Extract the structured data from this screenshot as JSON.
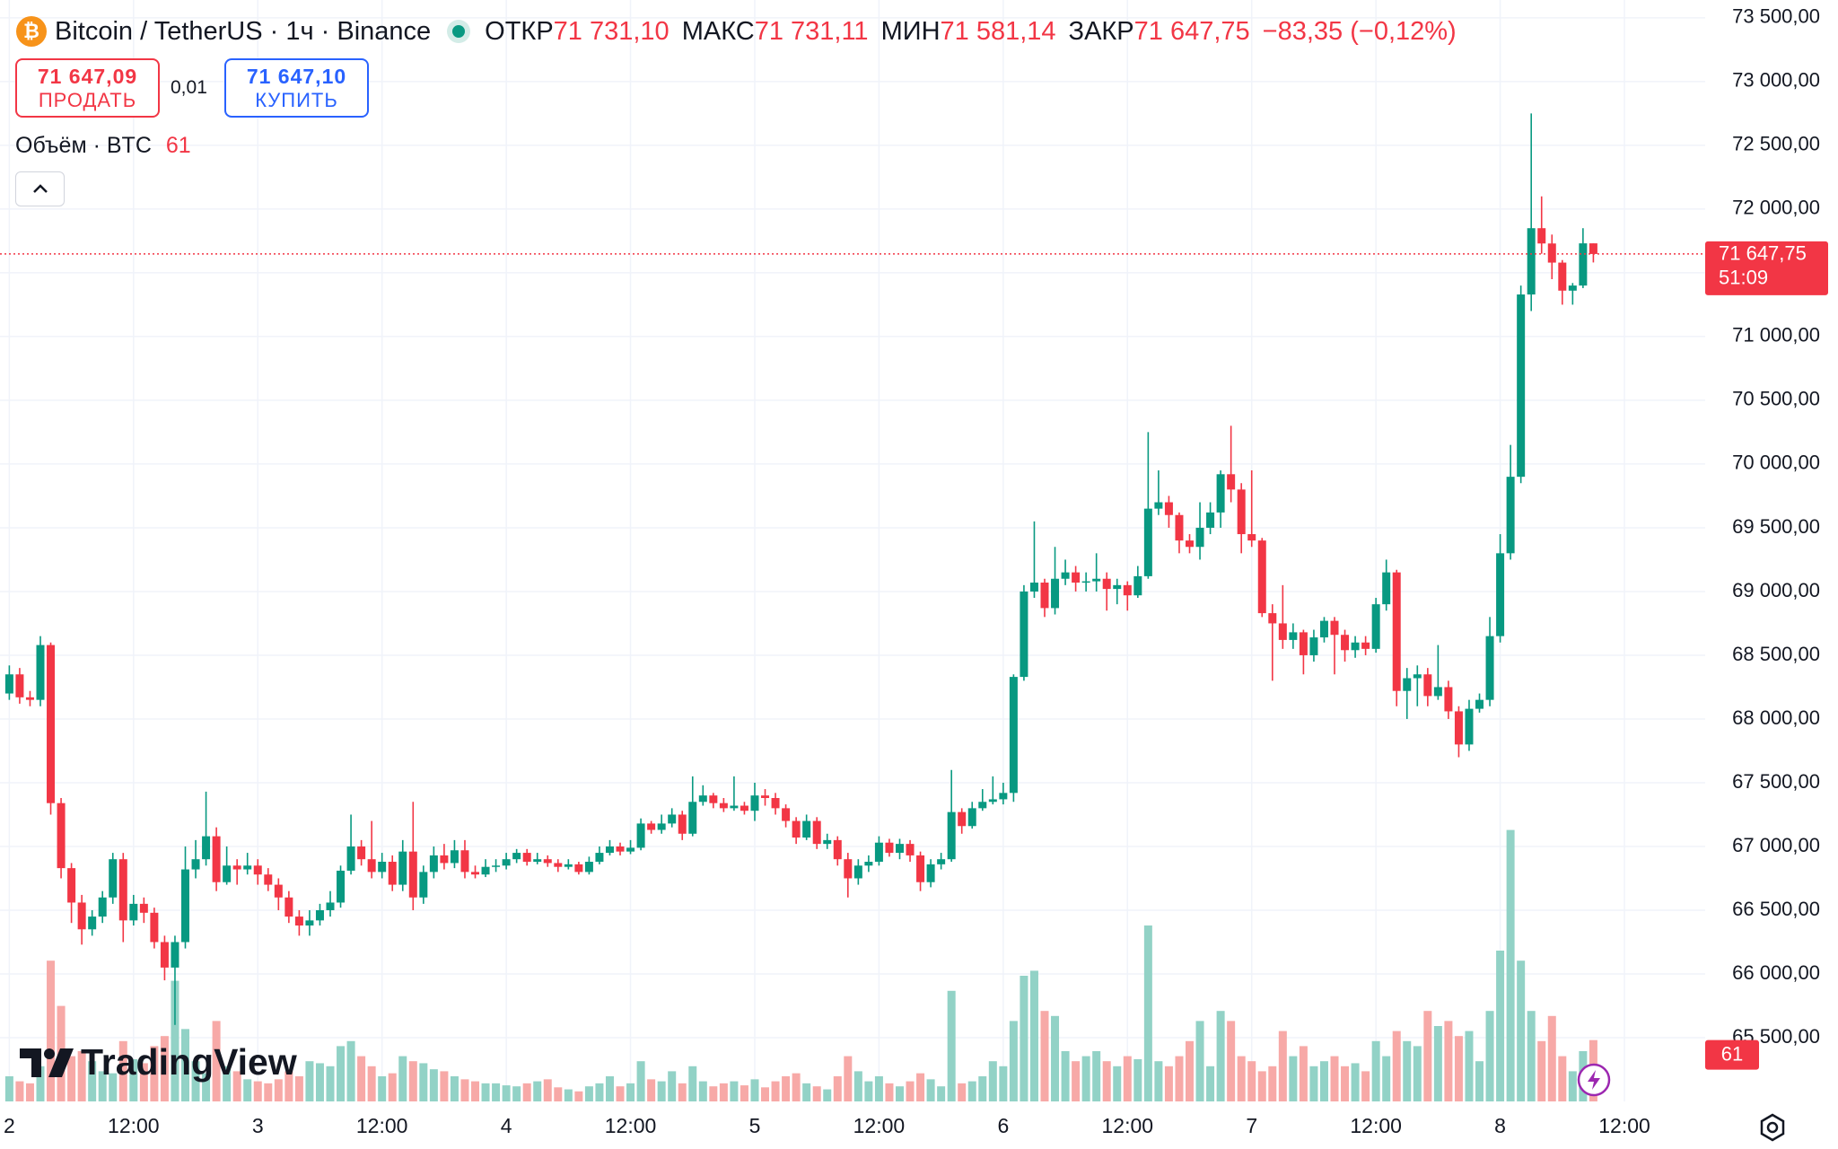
{
  "header": {
    "symbol": "Bitcoin / TetherUS · 1ч · Binance",
    "open_label": "ОТКР",
    "open": "71 731,10",
    "high_label": "МАКС",
    "high": "71 731,11",
    "low_label": "МИН",
    "low": "71 581,14",
    "close_label": "ЗАКР",
    "close": "71 647,75",
    "change": "−83,35 (−0,12%)"
  },
  "trade": {
    "sell_price": "71 647,09",
    "sell_label": "ПРОДАТЬ",
    "spread": "0,01",
    "buy_price": "71 647,10",
    "buy_label": "КУПИТЬ"
  },
  "volume_legend": {
    "title": "Объём · BTC"
  },
  "logo": "TradingView",
  "chart_data": {
    "type": "candlestick",
    "up_color": "#089981",
    "down_color": "#f23645",
    "up_volume_color": "#92d2c6",
    "down_volume_color": "#f7a9a7",
    "grid": true,
    "last_price_label": "71 647,75",
    "countdown": "51:09",
    "open": [
      68200,
      68350,
      68170,
      68150,
      68580,
      67340,
      66830,
      66560,
      66350,
      66450,
      66600,
      66900,
      66420,
      66550,
      66480,
      66250,
      66050,
      66250,
      66820,
      66900,
      67080,
      66720,
      66850,
      66820,
      66850,
      66780,
      66700,
      66600,
      66450,
      66380,
      66420,
      66500,
      66560,
      66810,
      67000,
      66900,
      66800,
      66880,
      66700,
      66960,
      66600,
      66800,
      66930,
      66870,
      66970,
      66800,
      66780,
      66840,
      66850,
      66900,
      66950,
      66880,
      66900,
      66870,
      66840,
      66860,
      66800,
      66880,
      66950,
      67000,
      66960,
      66990,
      67180,
      67130,
      67180,
      67250,
      67100,
      67350,
      67400,
      67340,
      67300,
      67320,
      67280,
      67400,
      67380,
      67300,
      67200,
      67070,
      67200,
      67020,
      67050,
      66900,
      66750,
      66850,
      66880,
      67030,
      66950,
      67020,
      66930,
      66720,
      66860,
      66900,
      67270,
      67160,
      67300,
      67350,
      67370,
      67420,
      68330,
      69000,
      69070,
      68870,
      69100,
      69150,
      69070,
      69080,
      69100,
      69020,
      69050,
      68970,
      69120,
      69650,
      69700,
      69600,
      69400,
      69350,
      69500,
      69620,
      69920,
      69800,
      69450,
      69400,
      68830,
      68750,
      68620,
      68680,
      68500,
      68640,
      68770,
      68660,
      68540,
      68600,
      68550,
      68900,
      69150,
      68220,
      68320,
      68350,
      68180,
      68250,
      68060,
      67800,
      68080,
      68150,
      68650,
      69300,
      69900,
      71330,
      71850,
      71730,
      71580,
      71360,
      71400,
      71731.1
    ],
    "high": [
      68420,
      68400,
      68220,
      68650,
      68600,
      67380,
      66870,
      66620,
      66500,
      66650,
      66950,
      66950,
      66620,
      66600,
      66520,
      66300,
      66300,
      67000,
      67050,
      67430,
      67150,
      67000,
      66900,
      66950,
      66900,
      66830,
      66750,
      66650,
      66500,
      66500,
      66550,
      66650,
      66850,
      67250,
      67050,
      67200,
      66950,
      66930,
      67050,
      67350,
      66850,
      67000,
      67020,
      67050,
      67050,
      66850,
      66900,
      66900,
      66950,
      66980,
      66980,
      66950,
      66930,
      66900,
      66900,
      66880,
      66920,
      67000,
      67050,
      67030,
      67050,
      67220,
      67200,
      67250,
      67300,
      67280,
      67550,
      67480,
      67420,
      67380,
      67550,
      67350,
      67500,
      67450,
      67420,
      67330,
      67230,
      67250,
      67230,
      67100,
      67080,
      66950,
      66900,
      66930,
      67080,
      67060,
      67060,
      67050,
      66960,
      66900,
      66950,
      67600,
      67300,
      67350,
      67450,
      67550,
      67500,
      68350,
      69050,
      69550,
      69100,
      69350,
      69250,
      69200,
      69150,
      69300,
      69150,
      69100,
      69080,
      69200,
      70250,
      69950,
      69750,
      69620,
      69450,
      69700,
      69700,
      69950,
      70300,
      69850,
      69950,
      69420,
      68900,
      69050,
      68750,
      68700,
      68700,
      68800,
      68800,
      68700,
      68650,
      68650,
      68950,
      69250,
      69170,
      68400,
      68420,
      68400,
      68580,
      68300,
      68100,
      68150,
      68200,
      68800,
      69450,
      70150,
      71400,
      72750,
      72100,
      71800,
      71600,
      71420,
      71850,
      71731.11
    ],
    "low": [
      68150,
      68120,
      68100,
      68100,
      67250,
      66750,
      66400,
      66230,
      66300,
      66400,
      66550,
      66250,
      66380,
      66400,
      66200,
      65950,
      65600,
      66200,
      66750,
      66850,
      66650,
      66700,
      66700,
      66780,
      66700,
      66650,
      66500,
      66400,
      66300,
      66300,
      66380,
      66450,
      66520,
      66780,
      66850,
      66750,
      66750,
      66650,
      66650,
      66500,
      66550,
      66750,
      66820,
      66830,
      66750,
      66750,
      66760,
      66800,
      66820,
      66870,
      66850,
      66860,
      66840,
      66800,
      66820,
      66780,
      66780,
      66860,
      66930,
      66930,
      66940,
      66970,
      67100,
      67100,
      67150,
      67050,
      67080,
      67320,
      67300,
      67270,
      67280,
      67250,
      67200,
      67320,
      67250,
      67150,
      67020,
      67050,
      66980,
      66980,
      66850,
      66600,
      66700,
      66800,
      66850,
      66920,
      66900,
      66880,
      66650,
      66680,
      66820,
      66880,
      67100,
      67140,
      67280,
      67330,
      67330,
      67350,
      68300,
      68950,
      68800,
      68820,
      69050,
      69000,
      69000,
      69000,
      68850,
      68900,
      68850,
      68950,
      69100,
      69600,
      69500,
      69300,
      69300,
      69250,
      69450,
      69500,
      69700,
      69300,
      69350,
      68800,
      68300,
      68550,
      68550,
      68350,
      68450,
      68600,
      68350,
      68450,
      68480,
      68500,
      68520,
      68850,
      68100,
      68000,
      68100,
      68100,
      68150,
      68000,
      67700,
      67750,
      68050,
      68100,
      68600,
      69250,
      69850,
      71200,
      71650,
      71450,
      71250,
      71250,
      71380,
      71581.14
    ],
    "close": [
      68350,
      68170,
      68150,
      68580,
      67340,
      66830,
      66560,
      66350,
      66450,
      66600,
      66900,
      66420,
      66550,
      66480,
      66250,
      66050,
      66250,
      66820,
      66900,
      67080,
      66720,
      66850,
      66820,
      66850,
      66780,
      66700,
      66600,
      66450,
      66380,
      66420,
      66500,
      66560,
      66810,
      67000,
      66900,
      66800,
      66880,
      66700,
      66960,
      66600,
      66800,
      66930,
      66870,
      66970,
      66800,
      66780,
      66840,
      66850,
      66900,
      66950,
      66880,
      66900,
      66870,
      66840,
      66860,
      66800,
      66880,
      66950,
      67000,
      66960,
      66990,
      67180,
      67130,
      67180,
      67250,
      67100,
      67350,
      67400,
      67340,
      67300,
      67320,
      67280,
      67400,
      67380,
      67300,
      67200,
      67070,
      67200,
      67020,
      67050,
      66900,
      66750,
      66850,
      66880,
      67030,
      66950,
      67020,
      66930,
      66720,
      66860,
      66900,
      67270,
      67160,
      67300,
      67350,
      67370,
      67420,
      68330,
      69000,
      69070,
      68870,
      69100,
      69150,
      69070,
      69080,
      69100,
      69020,
      69050,
      68970,
      69120,
      69650,
      69700,
      69600,
      69400,
      69350,
      69500,
      69620,
      69920,
      69800,
      69450,
      69400,
      68830,
      68750,
      68620,
      68680,
      68500,
      68640,
      68770,
      68660,
      68540,
      68600,
      68550,
      68900,
      69150,
      68220,
      68320,
      68350,
      68180,
      68250,
      68060,
      67800,
      68080,
      68150,
      68650,
      69300,
      69900,
      71330,
      71850,
      71730,
      71580,
      71360,
      71400,
      71731.1,
      71647.75
    ],
    "volume": [
      25,
      20,
      18,
      35,
      140,
      95,
      45,
      50,
      40,
      30,
      28,
      60,
      42,
      38,
      55,
      65,
      120,
      72,
      40,
      28,
      80,
      35,
      30,
      22,
      20,
      18,
      22,
      30,
      25,
      40,
      38,
      35,
      55,
      60,
      45,
      35,
      25,
      28,
      45,
      40,
      38,
      32,
      30,
      25,
      22,
      20,
      18,
      18,
      16,
      15,
      18,
      20,
      22,
      14,
      12,
      10,
      15,
      18,
      25,
      15,
      18,
      40,
      22,
      20,
      30,
      18,
      35,
      20,
      15,
      18,
      20,
      16,
      22,
      14,
      20,
      25,
      28,
      18,
      15,
      12,
      25,
      45,
      30,
      20,
      25,
      18,
      15,
      20,
      28,
      22,
      15,
      110,
      18,
      20,
      25,
      40,
      35,
      80,
      125,
      130,
      90,
      85,
      50,
      40,
      45,
      50,
      40,
      35,
      45,
      42,
      175,
      40,
      35,
      45,
      60,
      80,
      35,
      90,
      80,
      45,
      40,
      30,
      35,
      70,
      45,
      55,
      35,
      40,
      45,
      35,
      38,
      30,
      60,
      45,
      70,
      60,
      55,
      90,
      75,
      80,
      65,
      70,
      40,
      90,
      150,
      270,
      140,
      90,
      60,
      85,
      45,
      30,
      50,
      61
    ],
    "ylim": [
      65000,
      73640
    ],
    "yticks": [
      {
        "value": 65500,
        "label": "65 500,00"
      },
      {
        "value": 66000,
        "label": "66 000,00"
      },
      {
        "value": 66500,
        "label": "66 500,00"
      },
      {
        "value": 67000,
        "label": "67 000,00"
      },
      {
        "value": 67500,
        "label": "67 500,00"
      },
      {
        "value": 68000,
        "label": "68 000,00"
      },
      {
        "value": 68500,
        "label": "68 500,00"
      },
      {
        "value": 69000,
        "label": "69 000,00"
      },
      {
        "value": 69500,
        "label": "69 500,00"
      },
      {
        "value": 70000,
        "label": "70 000,00"
      },
      {
        "value": 70500,
        "label": "70 500,00"
      },
      {
        "value": 71000,
        "label": "71 000,00"
      },
      {
        "value": 71500,
        "label": "71 500,00"
      },
      {
        "value": 72000,
        "label": "72 000,00"
      },
      {
        "value": 72500,
        "label": "72 500,00"
      },
      {
        "value": 73000,
        "label": "73 000,00"
      },
      {
        "value": 73500,
        "label": "73 500,00"
      }
    ],
    "xlim": [
      -0.9,
      163.8
    ],
    "xticks": [
      {
        "value": 0,
        "label": "2"
      },
      {
        "value": 12,
        "label": "12:00"
      },
      {
        "value": 24,
        "label": "3"
      },
      {
        "value": 36,
        "label": "12:00"
      },
      {
        "value": 48,
        "label": "4"
      },
      {
        "value": 60,
        "label": "12:00"
      },
      {
        "value": 72,
        "label": "5"
      },
      {
        "value": 84,
        "label": "12:00"
      },
      {
        "value": 96,
        "label": "6"
      },
      {
        "value": 108,
        "label": "12:00"
      },
      {
        "value": 120,
        "label": "7"
      },
      {
        "value": 132,
        "label": "12:00"
      },
      {
        "value": 144,
        "label": "8"
      },
      {
        "value": 156,
        "label": "12:00"
      }
    ]
  }
}
